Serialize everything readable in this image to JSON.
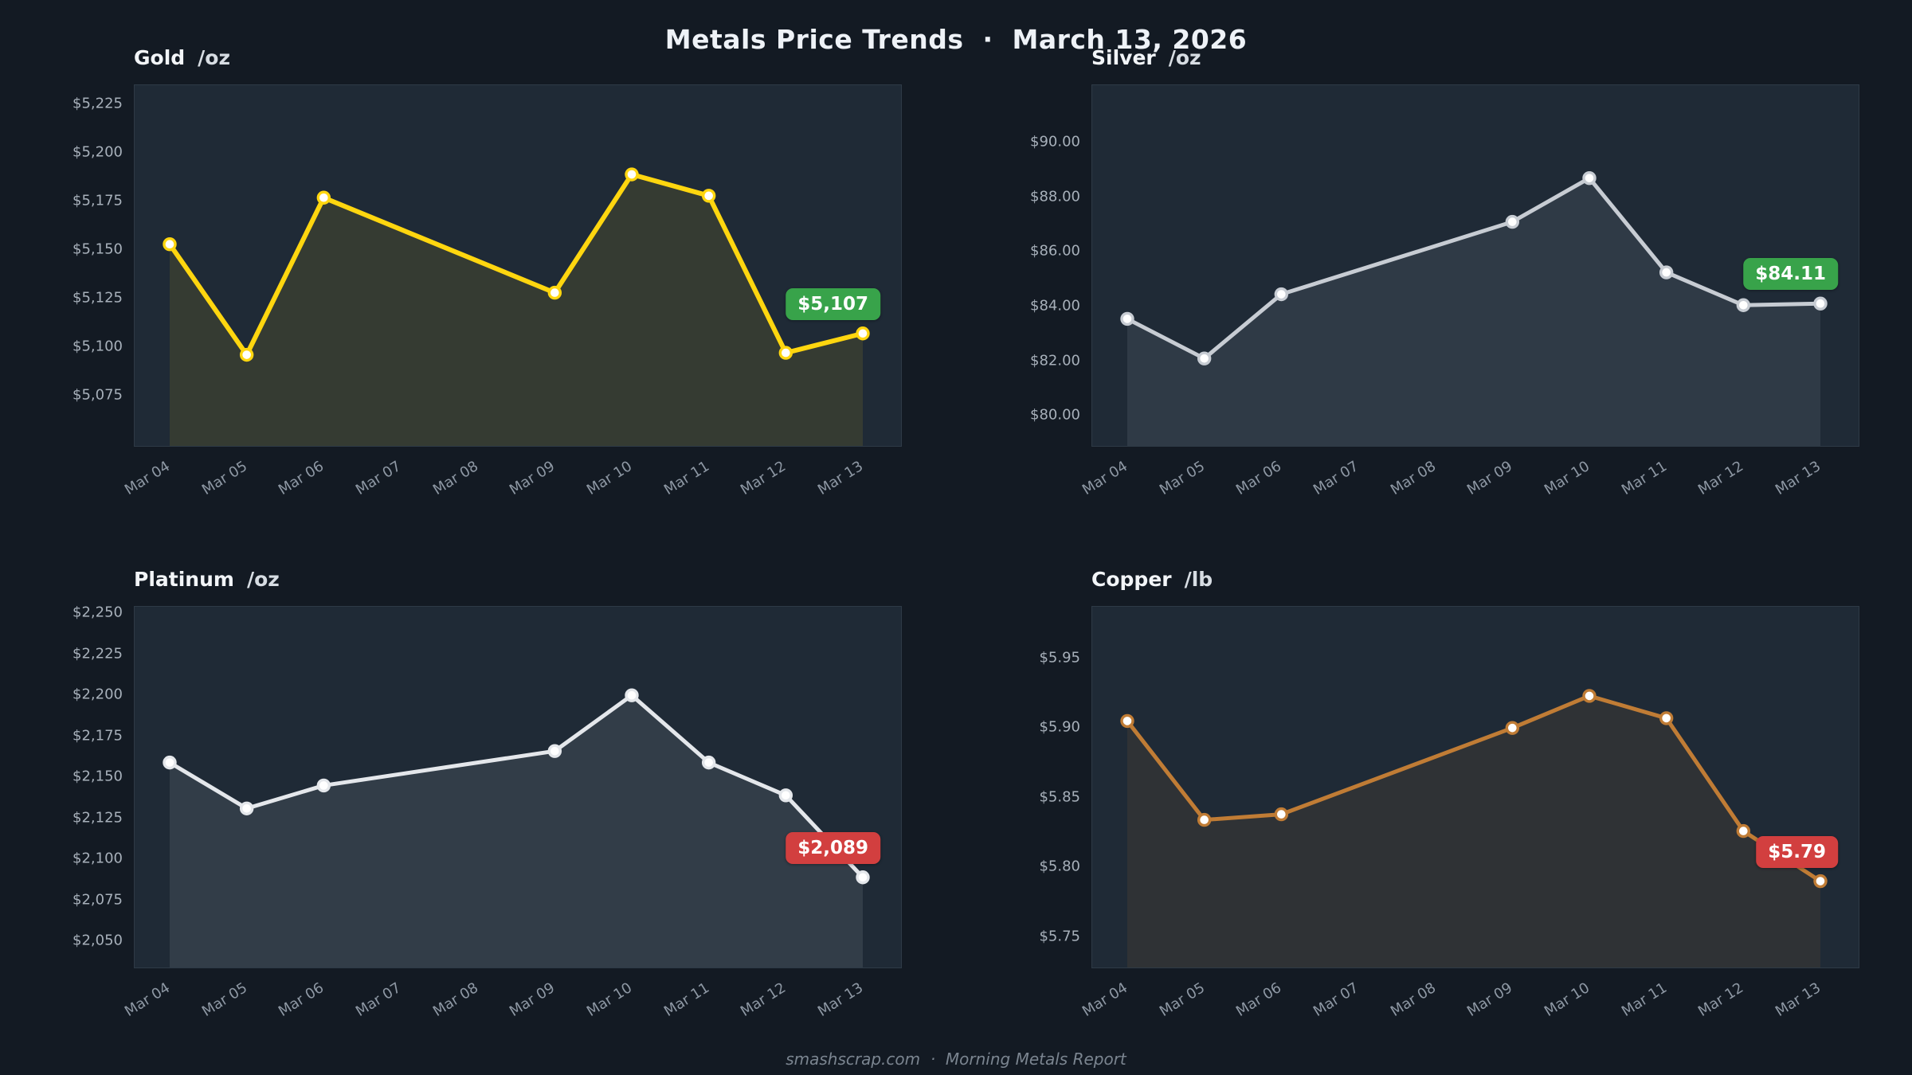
{
  "page": {
    "title": "Metals Price Trends  ·  March 13, 2026",
    "footer": "smashscrap.com  ·  Morning Metals Report"
  },
  "x_labels": [
    "Mar 04",
    "Mar 05",
    "Mar 06",
    "Mar 07",
    "Mar 08",
    "Mar 09",
    "Mar 10",
    "Mar 11",
    "Mar 12",
    "Mar 13"
  ],
  "chart_data": [
    {
      "type": "line",
      "title": "Gold",
      "unit": "/oz",
      "line_color": "#ffd60f",
      "fill_color": "rgba(255,214,15,0.10)",
      "line_width": 6,
      "badge": {
        "label": "$5,107",
        "color": "#38a34a"
      },
      "ylim": [
        5049,
        5235
      ],
      "yticks": [
        {
          "label": "$5,225",
          "value": 5225
        },
        {
          "label": "$5,200",
          "value": 5200
        },
        {
          "label": "$5,175",
          "value": 5175
        },
        {
          "label": "$5,150",
          "value": 5150
        },
        {
          "label": "$5,125",
          "value": 5125
        },
        {
          "label": "$5,100",
          "value": 5100
        },
        {
          "label": "$5,075",
          "value": 5075
        }
      ],
      "x_indices": [
        0,
        1,
        2,
        5,
        6,
        7,
        8,
        9
      ],
      "values": [
        5153,
        5096,
        5177,
        5128,
        5189,
        5178,
        5097,
        5107
      ],
      "xlabel": "",
      "ylabel": "",
      "grid": false,
      "legend": "none"
    },
    {
      "type": "line",
      "title": "Silver",
      "unit": "/oz",
      "line_color": "#c7ccd3",
      "fill_color": "rgba(199,204,211,0.10)",
      "line_width": 5,
      "badge": {
        "label": "$84.11",
        "color": "#38a34a"
      },
      "ylim": [
        78.9,
        92.1
      ],
      "yticks": [
        {
          "label": "$90.00",
          "value": 90
        },
        {
          "label": "$88.00",
          "value": 88
        },
        {
          "label": "$86.00",
          "value": 86
        },
        {
          "label": "$84.00",
          "value": 84
        },
        {
          "label": "$82.00",
          "value": 82
        },
        {
          "label": "$80.00",
          "value": 80
        }
      ],
      "x_indices": [
        0,
        1,
        2,
        5,
        6,
        7,
        8,
        9
      ],
      "values": [
        83.55,
        82.1,
        84.45,
        87.1,
        88.7,
        85.25,
        84.05,
        84.11
      ],
      "xlabel": "",
      "ylabel": "",
      "grid": false,
      "legend": "none"
    },
    {
      "type": "line",
      "title": "Platinum",
      "unit": "/oz",
      "line_color": "#e4e7eb",
      "fill_color": "rgba(228,231,235,0.10)",
      "line_width": 5,
      "badge": {
        "label": "$2,089",
        "color": "#d23f3f"
      },
      "ylim": [
        2034,
        2254
      ],
      "yticks": [
        {
          "label": "$2,250",
          "value": 2250
        },
        {
          "label": "$2,225",
          "value": 2225
        },
        {
          "label": "$2,200",
          "value": 2200
        },
        {
          "label": "$2,175",
          "value": 2175
        },
        {
          "label": "$2,150",
          "value": 2150
        },
        {
          "label": "$2,125",
          "value": 2125
        },
        {
          "label": "$2,100",
          "value": 2100
        },
        {
          "label": "$2,075",
          "value": 2075
        },
        {
          "label": "$2,050",
          "value": 2050
        }
      ],
      "x_indices": [
        0,
        1,
        2,
        5,
        6,
        7,
        8,
        9
      ],
      "values": [
        2159,
        2131,
        2145,
        2166,
        2200,
        2159,
        2139,
        2089
      ],
      "xlabel": "",
      "ylabel": "",
      "grid": false,
      "legend": "none"
    },
    {
      "type": "line",
      "title": "Copper",
      "unit": "/lb",
      "line_color": "#c07c35",
      "fill_color": "rgba(192,124,53,0.10)",
      "line_width": 5,
      "badge": {
        "label": "$5.79",
        "color": "#d23f3f"
      },
      "ylim": [
        5.728,
        5.987
      ],
      "yticks": [
        {
          "label": "$5.95",
          "value": 5.95
        },
        {
          "label": "$5.90",
          "value": 5.9
        },
        {
          "label": "$5.85",
          "value": 5.85
        },
        {
          "label": "$5.80",
          "value": 5.8
        },
        {
          "label": "$5.75",
          "value": 5.75
        }
      ],
      "x_indices": [
        0,
        1,
        2,
        5,
        6,
        7,
        8,
        9
      ],
      "values": [
        5.905,
        5.834,
        5.838,
        5.9,
        5.923,
        5.907,
        5.826,
        5.79
      ],
      "xlabel": "",
      "ylabel": "",
      "grid": false,
      "legend": "none"
    }
  ]
}
